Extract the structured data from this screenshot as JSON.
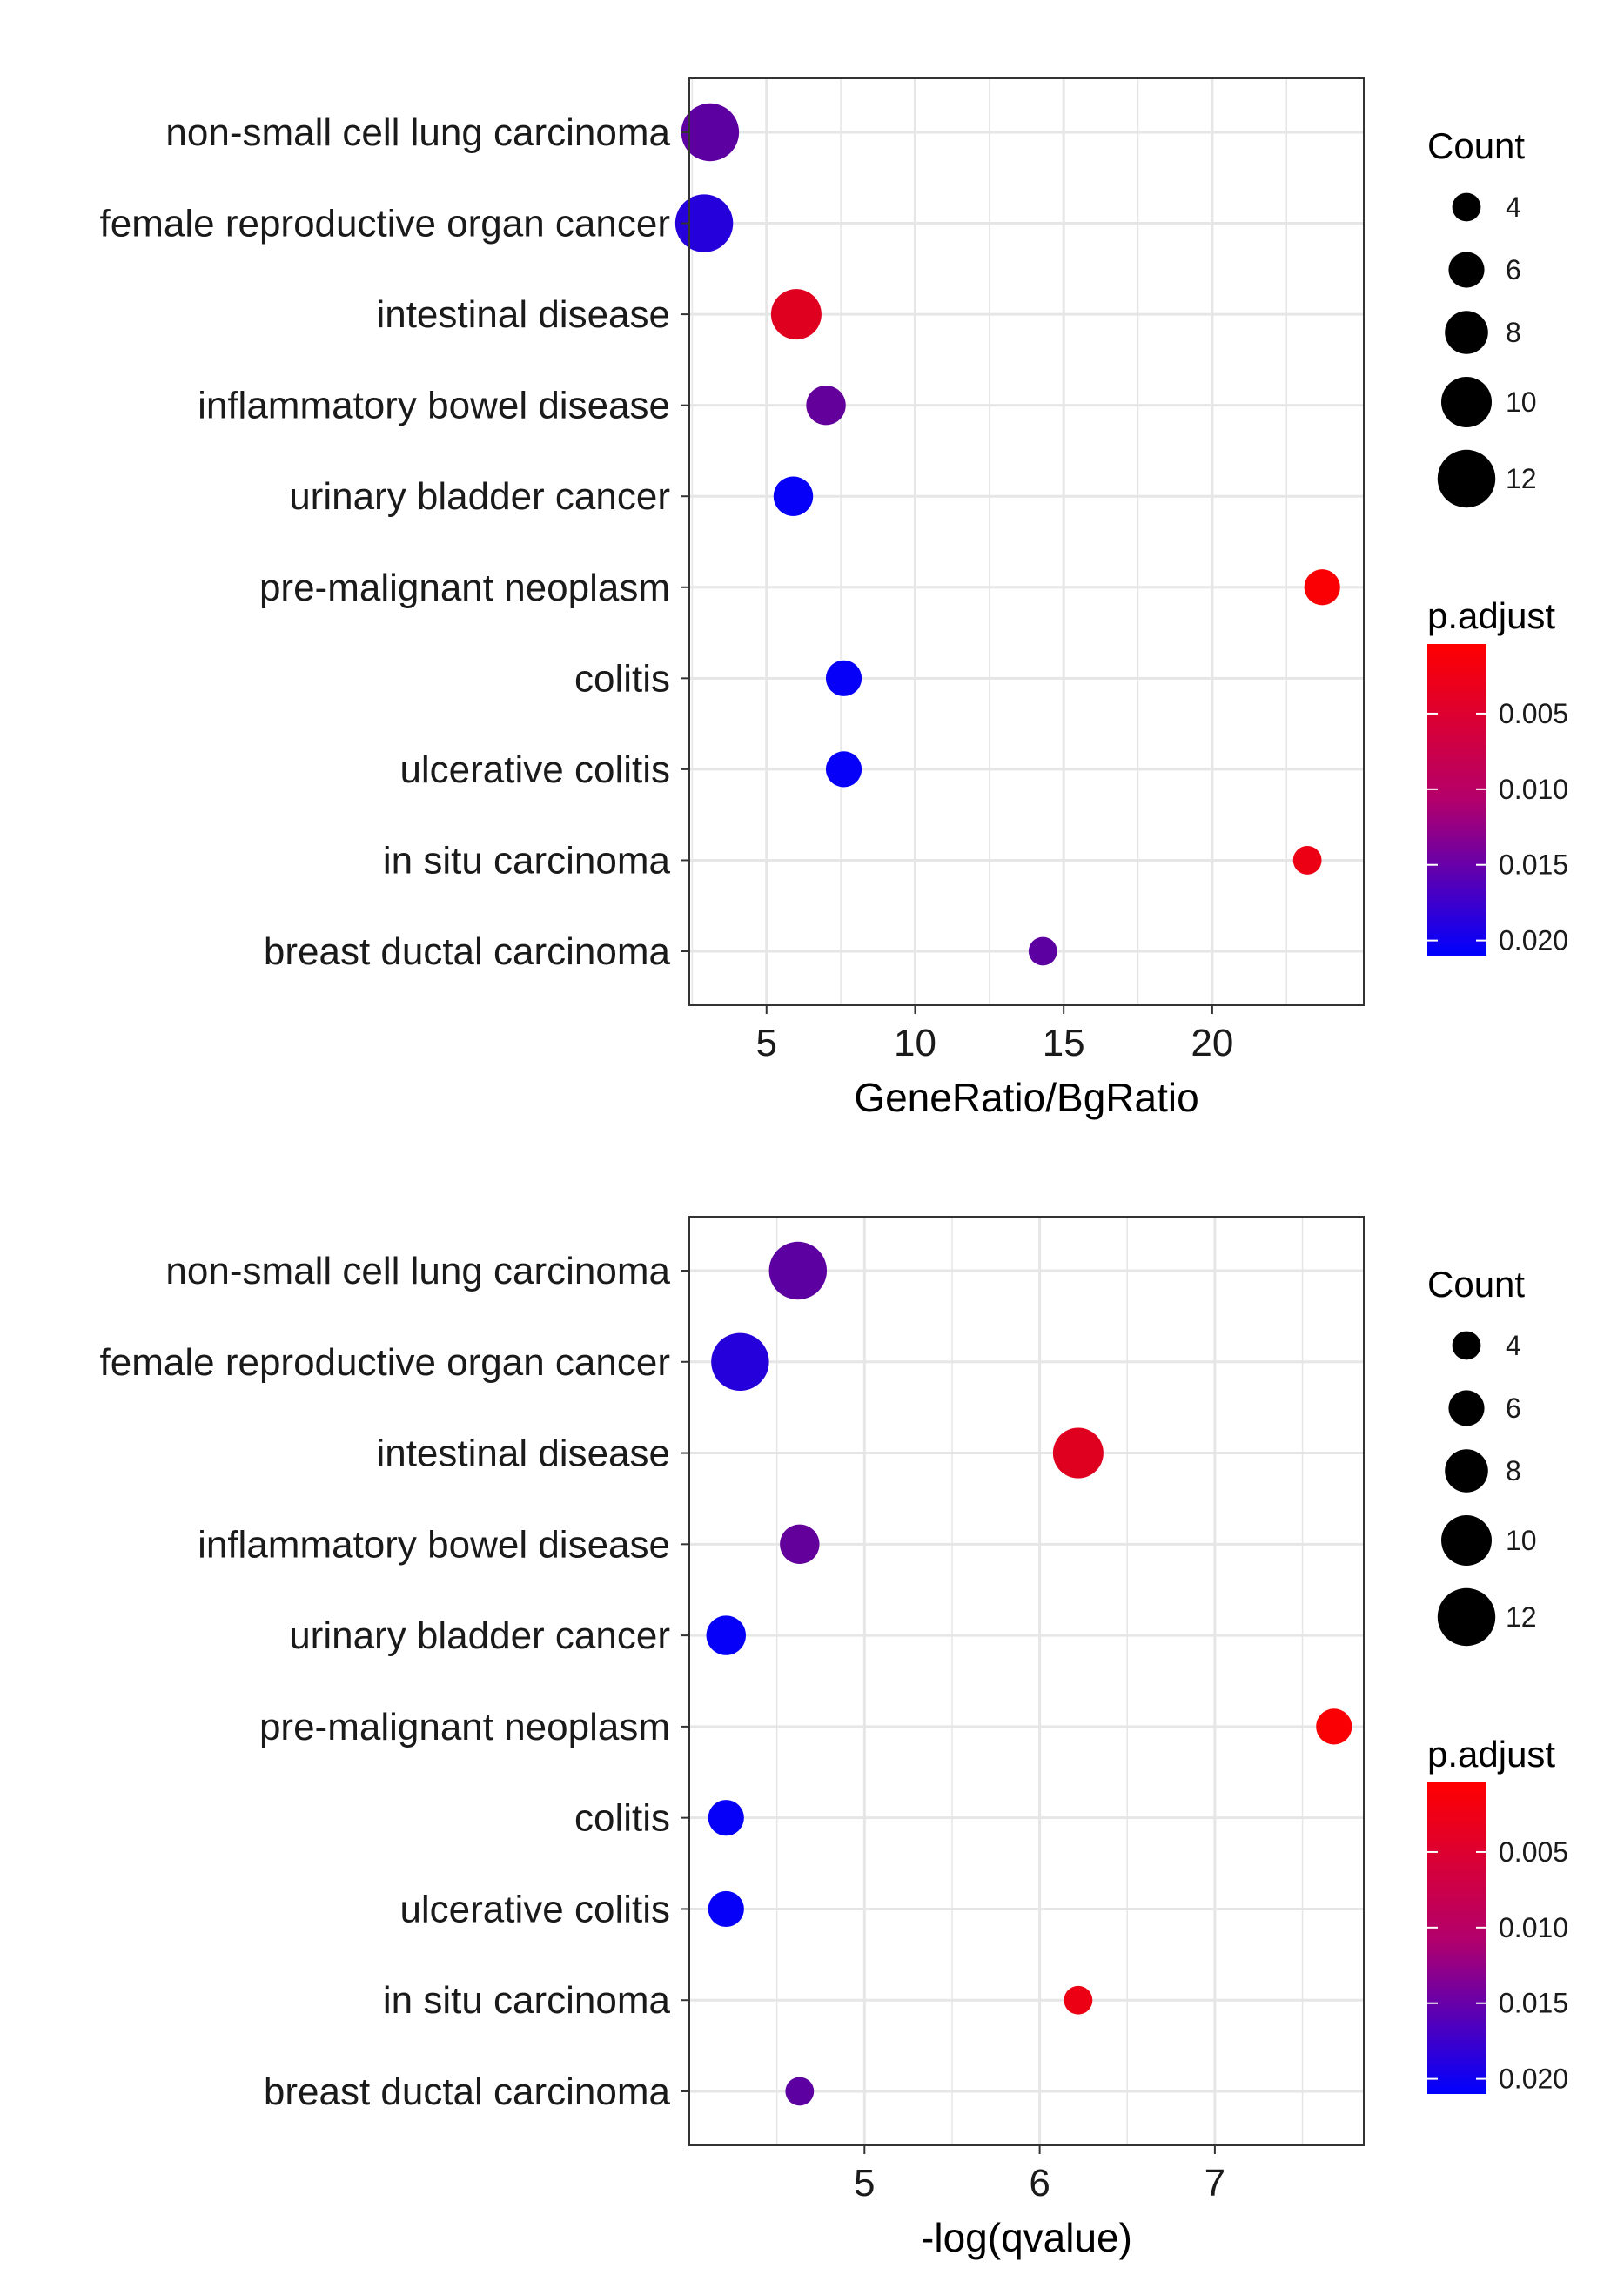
{
  "colors": {
    "low_p_color": "#ff0000",
    "high_p_color": "#0000ff",
    "grid": "#e6e6e6",
    "panel_border": "#333333"
  },
  "chart_data": [
    {
      "type": "scatter",
      "title": "",
      "xlabel": "GeneRatio/BgRatio",
      "ylabel": "",
      "xlim": [
        2.4,
        25.1
      ],
      "xticks": [
        5,
        10,
        15,
        20
      ],
      "grid": true,
      "legend_position": "right",
      "size_legend": {
        "title": "Count",
        "values": [
          4,
          6,
          8,
          10,
          12
        ]
      },
      "color_legend": {
        "title": "p.adjust",
        "ticks": [
          0.005,
          0.01,
          0.015,
          0.02
        ],
        "tick_labels": [
          "0.005",
          "0.010",
          "0.015",
          "0.020"
        ],
        "range": [
          0.0004,
          0.021
        ]
      },
      "categories": [
        "non-small cell lung carcinoma",
        "female reproductive organ cancer",
        "intestinal disease",
        "inflammatory bowel disease",
        "urinary bladder cancer",
        "pre-malignant neoplasm",
        "colitis",
        "ulcerative colitis",
        "in situ carcinoma",
        "breast ductal carcinoma"
      ],
      "points": [
        {
          "category": "non-small cell lung carcinoma",
          "x": 3.1,
          "count": 12,
          "p_adjust": 0.0135
        },
        {
          "category": "female reproductive organ cancer",
          "x": 2.9,
          "count": 12,
          "p_adjust": 0.018
        },
        {
          "category": "intestinal disease",
          "x": 6.0,
          "count": 10,
          "p_adjust": 0.003
        },
        {
          "category": "inflammatory bowel disease",
          "x": 7.0,
          "count": 7,
          "p_adjust": 0.013
        },
        {
          "category": "urinary bladder cancer",
          "x": 5.9,
          "count": 7,
          "p_adjust": 0.0205
        },
        {
          "category": "pre-malignant neoplasm",
          "x": 23.7,
          "count": 6,
          "p_adjust": 0.0008
        },
        {
          "category": "colitis",
          "x": 7.6,
          "count": 6,
          "p_adjust": 0.0205
        },
        {
          "category": "ulcerative colitis",
          "x": 7.6,
          "count": 6,
          "p_adjust": 0.0205
        },
        {
          "category": "in situ carcinoma",
          "x": 23.2,
          "count": 4,
          "p_adjust": 0.002
        },
        {
          "category": "breast ductal carcinoma",
          "x": 14.3,
          "count": 4,
          "p_adjust": 0.0135
        }
      ]
    },
    {
      "type": "scatter",
      "title": "",
      "xlabel": "-log(qvalue)",
      "ylabel": "",
      "xlim": [
        4.0,
        7.85
      ],
      "xticks": [
        5,
        6,
        7
      ],
      "grid": true,
      "legend_position": "right",
      "size_legend": {
        "title": "Count",
        "values": [
          4,
          6,
          8,
          10,
          12
        ]
      },
      "color_legend": {
        "title": "p.adjust",
        "ticks": [
          0.005,
          0.01,
          0.015,
          0.02
        ],
        "tick_labels": [
          "0.005",
          "0.010",
          "0.015",
          "0.020"
        ],
        "range": [
          0.0004,
          0.021
        ]
      },
      "categories": [
        "non-small cell lung carcinoma",
        "female reproductive organ cancer",
        "intestinal disease",
        "inflammatory bowel disease",
        "urinary bladder cancer",
        "pre-malignant neoplasm",
        "colitis",
        "ulcerative colitis",
        "in situ carcinoma",
        "breast ductal carcinoma"
      ],
      "points": [
        {
          "category": "non-small cell lung carcinoma",
          "x": 4.62,
          "count": 12,
          "p_adjust": 0.0135
        },
        {
          "category": "female reproductive organ cancer",
          "x": 4.29,
          "count": 12,
          "p_adjust": 0.018
        },
        {
          "category": "intestinal disease",
          "x": 6.22,
          "count": 10,
          "p_adjust": 0.003
        },
        {
          "category": "inflammatory bowel disease",
          "x": 4.63,
          "count": 7,
          "p_adjust": 0.013
        },
        {
          "category": "urinary bladder cancer",
          "x": 4.21,
          "count": 7,
          "p_adjust": 0.0205
        },
        {
          "category": "pre-malignant neoplasm",
          "x": 7.68,
          "count": 6,
          "p_adjust": 0.0008
        },
        {
          "category": "colitis",
          "x": 4.21,
          "count": 6,
          "p_adjust": 0.0205
        },
        {
          "category": "ulcerative colitis",
          "x": 4.21,
          "count": 6,
          "p_adjust": 0.0205
        },
        {
          "category": "in situ carcinoma",
          "x": 6.22,
          "count": 4,
          "p_adjust": 0.002
        },
        {
          "category": "breast ductal carcinoma",
          "x": 4.63,
          "count": 4,
          "p_adjust": 0.0135
        }
      ]
    }
  ]
}
